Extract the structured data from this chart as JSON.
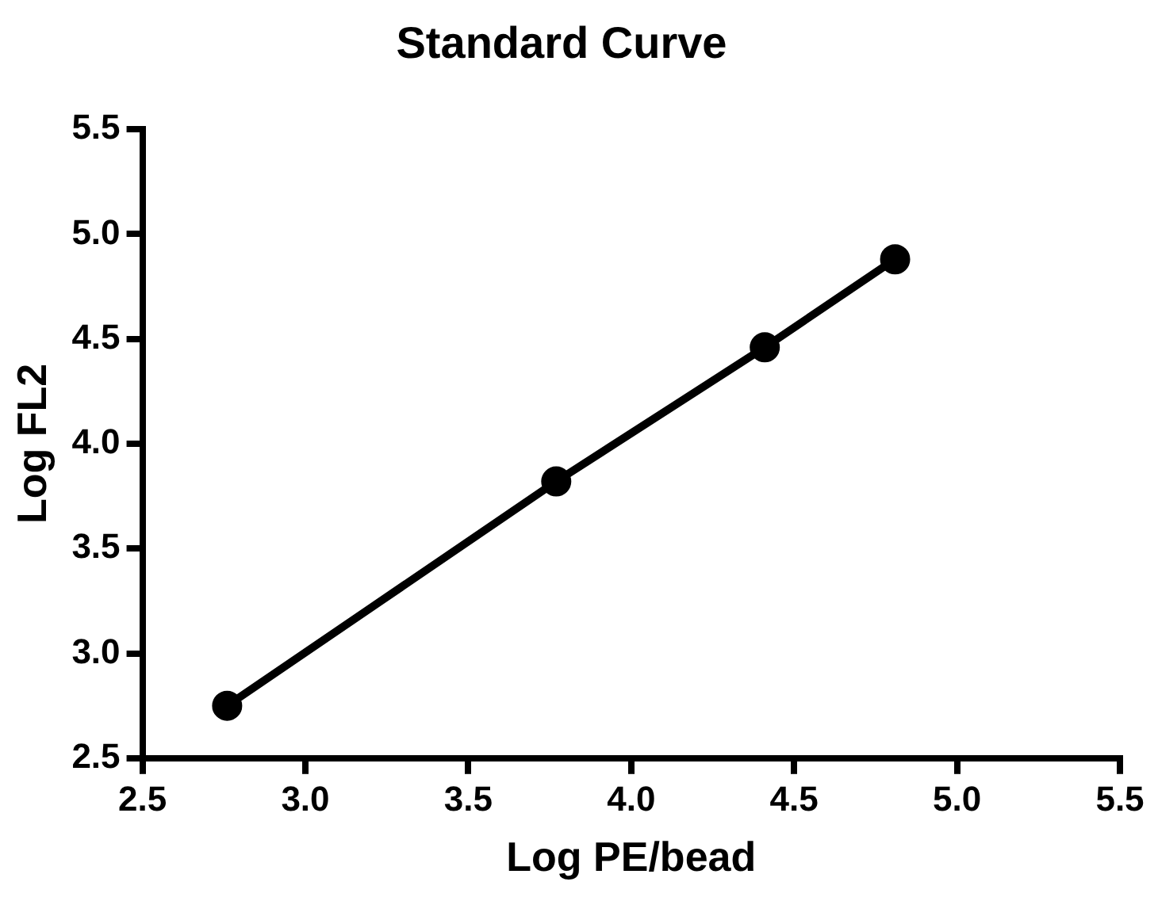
{
  "chart_data": {
    "type": "line",
    "title": "Standard Curve",
    "xlabel": "Log PE/bead",
    "ylabel": "Log FL2",
    "x": [
      2.76,
      3.77,
      4.41,
      4.81
    ],
    "series": [
      {
        "color": "#000000",
        "values": [
          2.75,
          3.82,
          4.46,
          4.88
        ]
      }
    ],
    "xlim": [
      2.5,
      5.5
    ],
    "xticks": [
      {
        "value": 2.5,
        "label": "2.5"
      },
      {
        "value": 3,
        "label": "3.0"
      },
      {
        "value": 3.5,
        "label": "3.5"
      },
      {
        "value": 4,
        "label": "4.0"
      },
      {
        "value": 4.5,
        "label": "4.5"
      },
      {
        "value": 5,
        "label": "5.0"
      },
      {
        "value": 5.5,
        "label": "5.5"
      }
    ],
    "ylim": [
      2.5,
      5.5
    ],
    "yticks": [
      {
        "value": 2.5,
        "label": "2.5"
      },
      {
        "value": 3,
        "label": "3.0"
      },
      {
        "value": 3.5,
        "label": "3.5"
      },
      {
        "value": 4,
        "label": "4.0"
      },
      {
        "value": 4.5,
        "label": "4.5"
      },
      {
        "value": 5,
        "label": "5.0"
      },
      {
        "value": 5.5,
        "label": "5.5"
      }
    ],
    "grid": false,
    "legend": false,
    "marker": "circle",
    "line_style": "solid"
  }
}
